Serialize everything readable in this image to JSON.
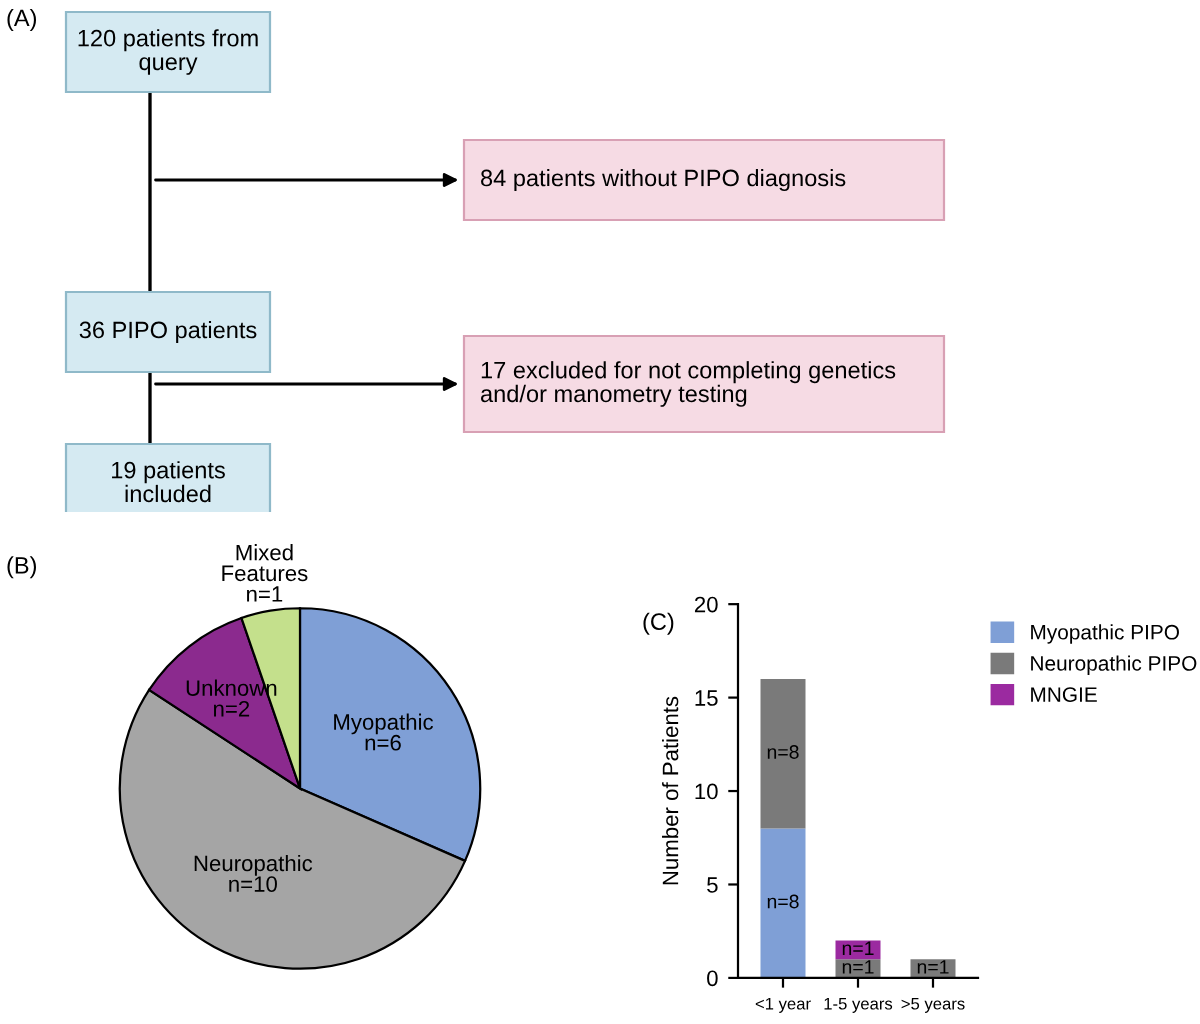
{
  "chart_data": [
    {
      "type": "other",
      "title": "(A)",
      "annotations": [
        "120 patients from query",
        "84 patients without PIPO diagnosis",
        "36 PIPO patients",
        "17 excluded for not completing genetics and/or manometry testing",
        "19 patients included"
      ]
    },
    {
      "type": "pie",
      "title": "(B)",
      "categories": [
        "Myopathic",
        "Neuropathic",
        "Unknown",
        "Mixed Features"
      ],
      "values": [
        6,
        10,
        2,
        1
      ],
      "value_labels": [
        "n=6",
        "n=10",
        "n=2",
        "n=1"
      ],
      "colors": [
        "#7f9fd6",
        "#a5a5a5",
        "#8b2a8e",
        "#c4e08c"
      ]
    },
    {
      "type": "bar",
      "title": "(C)",
      "stacked": true,
      "categories": [
        "<1 year",
        "1-5 years",
        ">5 years"
      ],
      "ylabel": "Number of Patients",
      "ylim": [
        0,
        20
      ],
      "yticks": [
        0,
        5,
        10,
        15,
        20
      ],
      "legend": "right",
      "series": [
        {
          "name": "Myopathic PIPO",
          "color": "#7f9fd6",
          "values": [
            8,
            null,
            null
          ],
          "value_labels": [
            "n=8",
            null,
            null
          ]
        },
        {
          "name": "Neuropathic PIPO",
          "color": "#7a7a7a",
          "values": [
            8,
            1,
            1
          ],
          "value_labels": [
            "n=8",
            "n=1",
            "n=1"
          ]
        },
        {
          "name": "MNGIE",
          "color": "#9b2aa0",
          "values": [
            null,
            1,
            null
          ],
          "value_labels": [
            null,
            "n=1",
            null
          ]
        }
      ]
    }
  ]
}
